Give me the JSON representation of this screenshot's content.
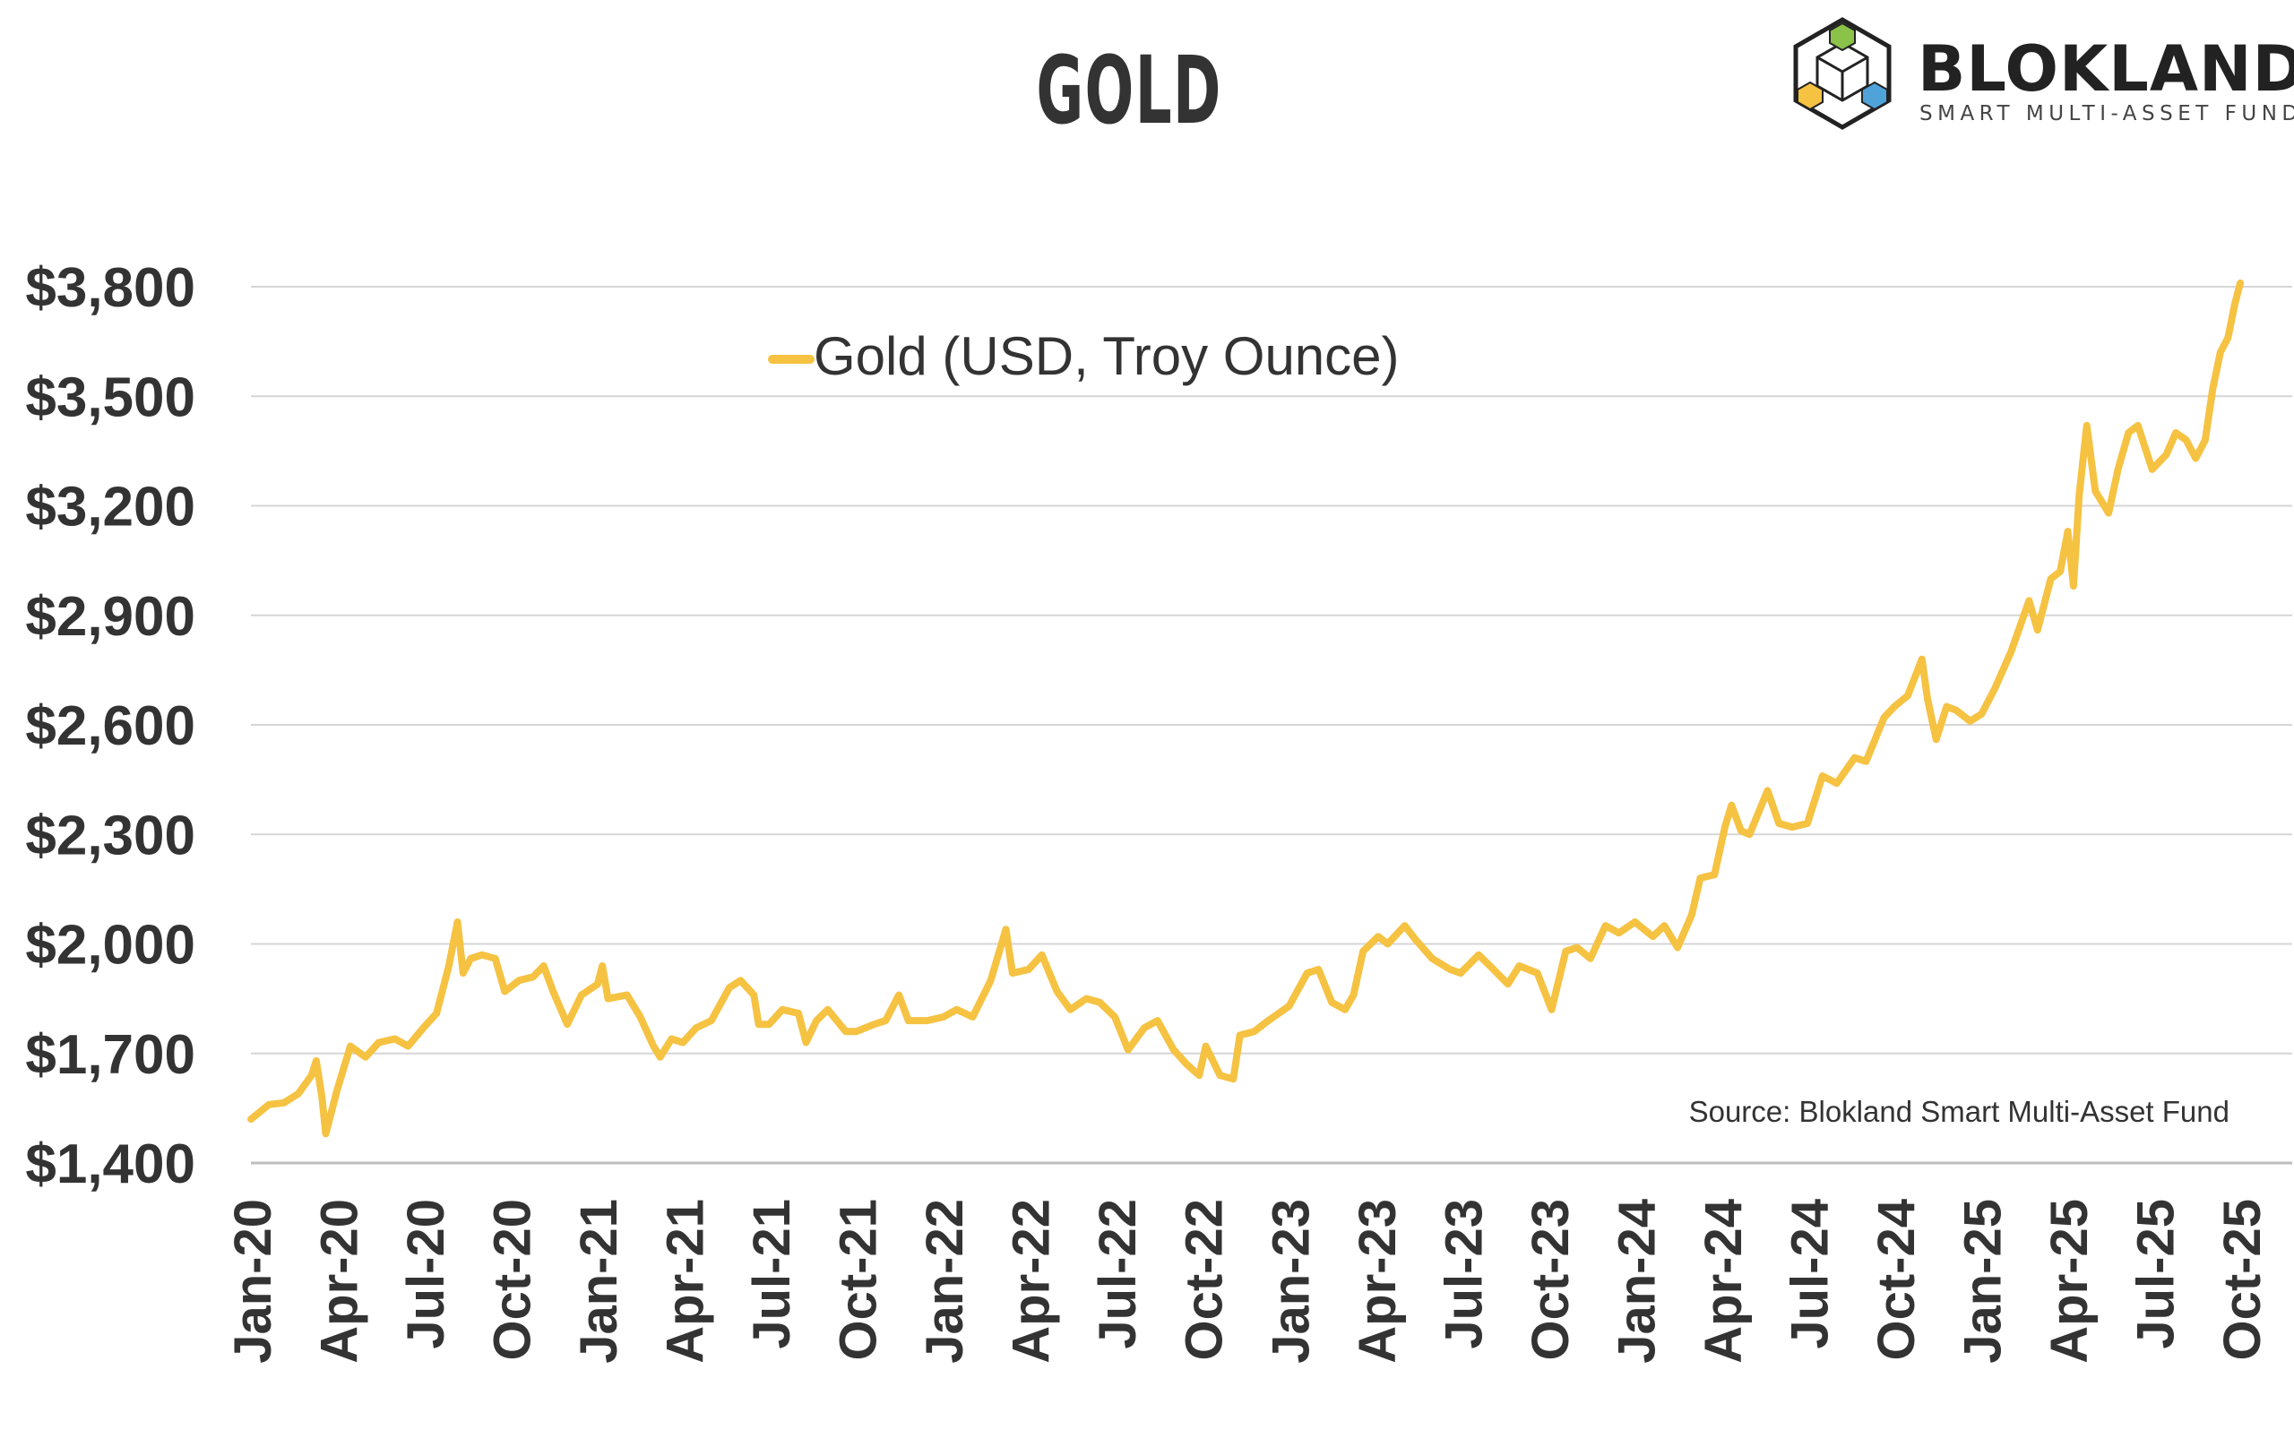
{
  "header": {
    "title": "GOLD"
  },
  "logo": {
    "name": "BLOKLAND",
    "tagline": "SMART MULTI-ASSET FUND",
    "icon": "blokland-cube-icon"
  },
  "source_note": "Source: Blokland Smart Multi-Asset Fund",
  "colors": {
    "series": "#F5C242",
    "grid": "#D0D0D0",
    "text": "#333333",
    "cube_green": "#8BC34A",
    "cube_yellow": "#F5C242",
    "cube_blue": "#4FA3D9"
  },
  "chart_data": {
    "type": "line",
    "title": "GOLD",
    "xlabel": "",
    "ylabel": "",
    "ylim": [
      1400,
      3800
    ],
    "yticks": [
      1400,
      1700,
      2000,
      2300,
      2600,
      2900,
      3200,
      3500,
      3800
    ],
    "ytick_labels": [
      "$1,400",
      "$1,700",
      "$2,000",
      "$2,300",
      "$2,600",
      "$2,900",
      "$3,200",
      "$3,500",
      "$3,800"
    ],
    "xtick_labels": [
      "Jan-20",
      "Apr-20",
      "Jul-20",
      "Oct-20",
      "Jan-21",
      "Apr-21",
      "Jul-21",
      "Oct-21",
      "Jan-22",
      "Apr-22",
      "Jul-22",
      "Oct-22",
      "Jan-23",
      "Apr-23",
      "Jul-23",
      "Oct-23",
      "Jan-24",
      "Apr-24",
      "Jul-24",
      "Oct-24",
      "Jan-25",
      "Apr-25",
      "Jul-25",
      "Oct-25"
    ],
    "grid": true,
    "legend": "top-center",
    "series": [
      {
        "name": "Gold (USD, Troy Ounce)",
        "color": "#F5C242",
        "points": [
          [
            "2020-01-01",
            1520
          ],
          [
            "2020-01-20",
            1560
          ],
          [
            "2020-02-05",
            1565
          ],
          [
            "2020-02-20",
            1590
          ],
          [
            "2020-03-05",
            1640
          ],
          [
            "2020-03-10",
            1680
          ],
          [
            "2020-03-16",
            1580
          ],
          [
            "2020-03-20",
            1480
          ],
          [
            "2020-04-01",
            1600
          ],
          [
            "2020-04-15",
            1720
          ],
          [
            "2020-05-01",
            1690
          ],
          [
            "2020-05-15",
            1730
          ],
          [
            "2020-06-01",
            1740
          ],
          [
            "2020-06-15",
            1720
          ],
          [
            "2020-07-01",
            1770
          ],
          [
            "2020-07-15",
            1810
          ],
          [
            "2020-07-28",
            1940
          ],
          [
            "2020-08-06",
            2060
          ],
          [
            "2020-08-12",
            1920
          ],
          [
            "2020-08-20",
            1960
          ],
          [
            "2020-09-01",
            1970
          ],
          [
            "2020-09-15",
            1960
          ],
          [
            "2020-09-25",
            1870
          ],
          [
            "2020-10-10",
            1900
          ],
          [
            "2020-10-25",
            1910
          ],
          [
            "2020-11-05",
            1940
          ],
          [
            "2020-11-15",
            1870
          ],
          [
            "2020-11-30",
            1780
          ],
          [
            "2020-12-15",
            1860
          ],
          [
            "2021-01-01",
            1890
          ],
          [
            "2021-01-06",
            1940
          ],
          [
            "2021-01-12",
            1850
          ],
          [
            "2021-02-01",
            1860
          ],
          [
            "2021-02-15",
            1800
          ],
          [
            "2021-03-01",
            1720
          ],
          [
            "2021-03-08",
            1690
          ],
          [
            "2021-03-20",
            1740
          ],
          [
            "2021-04-01",
            1730
          ],
          [
            "2021-04-15",
            1770
          ],
          [
            "2021-05-01",
            1790
          ],
          [
            "2021-05-20",
            1880
          ],
          [
            "2021-06-01",
            1900
          ],
          [
            "2021-06-15",
            1860
          ],
          [
            "2021-06-20",
            1780
          ],
          [
            "2021-07-01",
            1780
          ],
          [
            "2021-07-15",
            1820
          ],
          [
            "2021-08-01",
            1810
          ],
          [
            "2021-08-09",
            1730
          ],
          [
            "2021-08-20",
            1790
          ],
          [
            "2021-09-01",
            1820
          ],
          [
            "2021-09-20",
            1760
          ],
          [
            "2021-10-01",
            1760
          ],
          [
            "2021-10-20",
            1780
          ],
          [
            "2021-11-01",
            1790
          ],
          [
            "2021-11-15",
            1860
          ],
          [
            "2021-11-25",
            1790
          ],
          [
            "2021-12-15",
            1790
          ],
          [
            "2022-01-01",
            1800
          ],
          [
            "2022-01-15",
            1820
          ],
          [
            "2022-02-01",
            1800
          ],
          [
            "2022-02-20",
            1900
          ],
          [
            "2022-03-08",
            2040
          ],
          [
            "2022-03-15",
            1920
          ],
          [
            "2022-04-01",
            1930
          ],
          [
            "2022-04-15",
            1970
          ],
          [
            "2022-05-01",
            1870
          ],
          [
            "2022-05-15",
            1820
          ],
          [
            "2022-06-01",
            1850
          ],
          [
            "2022-06-15",
            1840
          ],
          [
            "2022-07-01",
            1800
          ],
          [
            "2022-07-15",
            1710
          ],
          [
            "2022-08-01",
            1770
          ],
          [
            "2022-08-15",
            1790
          ],
          [
            "2022-09-01",
            1710
          ],
          [
            "2022-09-15",
            1670
          ],
          [
            "2022-09-28",
            1640
          ],
          [
            "2022-10-05",
            1720
          ],
          [
            "2022-10-20",
            1640
          ],
          [
            "2022-11-03",
            1630
          ],
          [
            "2022-11-10",
            1750
          ],
          [
            "2022-11-25",
            1760
          ],
          [
            "2022-12-10",
            1790
          ],
          [
            "2023-01-01",
            1830
          ],
          [
            "2023-01-20",
            1920
          ],
          [
            "2023-02-01",
            1930
          ],
          [
            "2023-02-15",
            1840
          ],
          [
            "2023-03-01",
            1820
          ],
          [
            "2023-03-10",
            1860
          ],
          [
            "2023-03-20",
            1980
          ],
          [
            "2023-04-05",
            2020
          ],
          [
            "2023-04-15",
            2000
          ],
          [
            "2023-05-03",
            2050
          ],
          [
            "2023-05-15",
            2010
          ],
          [
            "2023-06-01",
            1960
          ],
          [
            "2023-06-20",
            1930
          ],
          [
            "2023-07-01",
            1920
          ],
          [
            "2023-07-20",
            1970
          ],
          [
            "2023-08-01",
            1940
          ],
          [
            "2023-08-20",
            1890
          ],
          [
            "2023-09-01",
            1940
          ],
          [
            "2023-09-20",
            1920
          ],
          [
            "2023-10-05",
            1820
          ],
          [
            "2023-10-20",
            1980
          ],
          [
            "2023-11-01",
            1990
          ],
          [
            "2023-11-15",
            1960
          ],
          [
            "2023-12-01",
            2050
          ],
          [
            "2023-12-15",
            2030
          ],
          [
            "2024-01-01",
            2060
          ],
          [
            "2024-01-20",
            2020
          ],
          [
            "2024-02-01",
            2050
          ],
          [
            "2024-02-15",
            1990
          ],
          [
            "2024-03-01",
            2080
          ],
          [
            "2024-03-10",
            2180
          ],
          [
            "2024-03-25",
            2190
          ],
          [
            "2024-04-05",
            2320
          ],
          [
            "2024-04-12",
            2380
          ],
          [
            "2024-04-22",
            2310
          ],
          [
            "2024-05-01",
            2300
          ],
          [
            "2024-05-20",
            2420
          ],
          [
            "2024-06-01",
            2330
          ],
          [
            "2024-06-15",
            2320
          ],
          [
            "2024-07-01",
            2330
          ],
          [
            "2024-07-17",
            2460
          ],
          [
            "2024-08-01",
            2440
          ],
          [
            "2024-08-20",
            2510
          ],
          [
            "2024-09-01",
            2500
          ],
          [
            "2024-09-20",
            2620
          ],
          [
            "2024-10-01",
            2650
          ],
          [
            "2024-10-15",
            2680
          ],
          [
            "2024-10-30",
            2780
          ],
          [
            "2024-11-05",
            2670
          ],
          [
            "2024-11-14",
            2560
          ],
          [
            "2024-11-25",
            2650
          ],
          [
            "2024-12-05",
            2640
          ],
          [
            "2024-12-20",
            2610
          ],
          [
            "2025-01-01",
            2630
          ],
          [
            "2025-01-15",
            2700
          ],
          [
            "2025-02-01",
            2800
          ],
          [
            "2025-02-20",
            2940
          ],
          [
            "2025-03-01",
            2860
          ],
          [
            "2025-03-15",
            3000
          ],
          [
            "2025-03-25",
            3020
          ],
          [
            "2025-04-02",
            3130
          ],
          [
            "2025-04-08",
            2980
          ],
          [
            "2025-04-14",
            3230
          ],
          [
            "2025-04-22",
            3420
          ],
          [
            "2025-05-01",
            3240
          ],
          [
            "2025-05-15",
            3180
          ],
          [
            "2025-05-25",
            3300
          ],
          [
            "2025-06-05",
            3400
          ],
          [
            "2025-06-15",
            3420
          ],
          [
            "2025-06-30",
            3300
          ],
          [
            "2025-07-15",
            3340
          ],
          [
            "2025-07-25",
            3400
          ],
          [
            "2025-08-05",
            3380
          ],
          [
            "2025-08-15",
            3330
          ],
          [
            "2025-08-25",
            3380
          ],
          [
            "2025-09-02",
            3520
          ],
          [
            "2025-09-10",
            3620
          ],
          [
            "2025-09-18",
            3660
          ],
          [
            "2025-09-25",
            3750
          ],
          [
            "2025-10-01",
            3810
          ]
        ]
      }
    ]
  }
}
